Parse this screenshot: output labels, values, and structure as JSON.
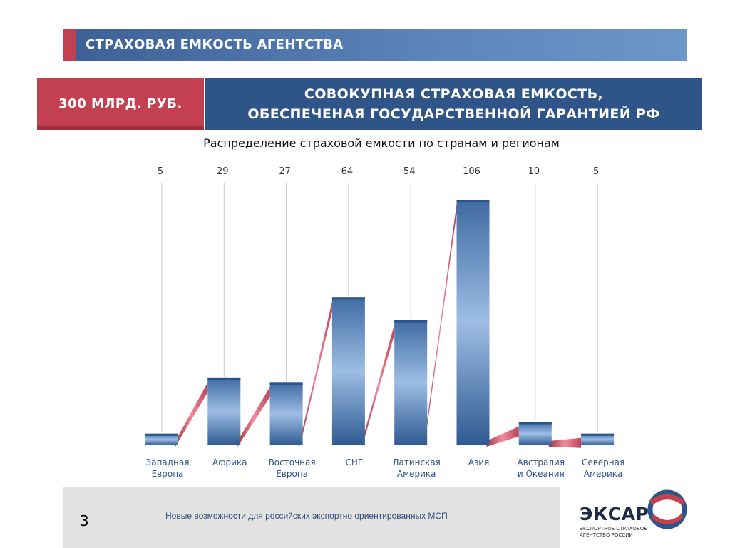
{
  "slide": {
    "title": "СТРАХОВАЯ ЕМКОСТЬ АГЕНТСТВА",
    "amount": "300 МЛРД. РУБ.",
    "headline_line1": "СОВОКУПНАЯ СТРАХОВАЯ ЕМКОСТЬ,",
    "headline_line2": "ОБЕСПЕЧЕНАЯ ГОСУДАРСТВЕННОЙ ГАРАНТИЕЙ РФ",
    "subtitle": "Распределение страховой емкости по странам и регионам",
    "page_number": "3",
    "footer_text": "Новые возможности для российских экспортно ориентированных МСП",
    "logo_word": "ЭКСАР",
    "logo_sub": "ЭКСПОРТНОЕ СТРАХОВОЕ АГЕНТСТВО РОССИИ"
  },
  "colors": {
    "title_bar": "#4a6fa5",
    "accent_red": "#c2404f",
    "headline_blue": "#2f5487",
    "bar_light": "#9dbde4",
    "bar_dark": "#2f5a91",
    "ribbon": "#c8485e",
    "category_text": "#2f5487"
  },
  "chart_data": {
    "type": "bar",
    "categories": [
      [
        "Западная",
        "Европа"
      ],
      [
        "Африка"
      ],
      [
        "Восточная",
        "Европа"
      ],
      [
        "СНГ"
      ],
      [
        "Латинская",
        "Америка"
      ],
      [
        "Азия"
      ],
      [
        "Австралия",
        "и Океания"
      ],
      [
        "Северная",
        "Америка"
      ]
    ],
    "values": [
      5,
      29,
      27,
      64,
      54,
      106,
      10,
      5
    ],
    "ylim": [
      0,
      106
    ],
    "grid": false,
    "legend": "none"
  }
}
